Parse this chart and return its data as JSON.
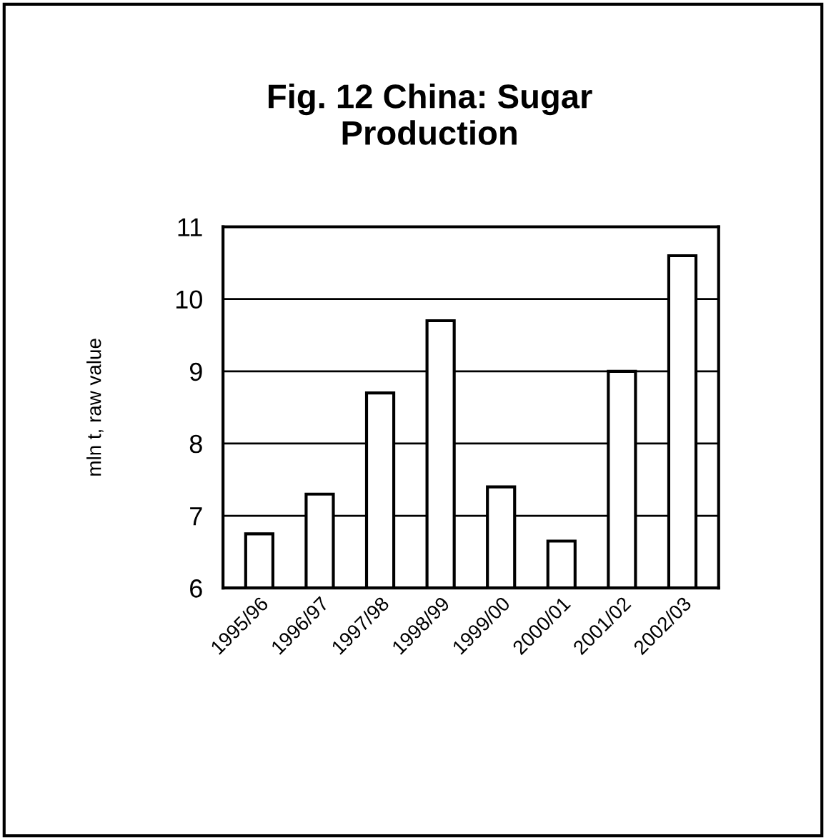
{
  "chart_data": {
    "type": "bar",
    "title": "Fig. 12 China: Sugar\nProduction",
    "ylabel": "mln t, raw value",
    "categories": [
      "1995/96",
      "1996/97",
      "1997/98",
      "1998/99",
      "1999/00",
      "2000/01",
      "2001/02",
      "2002/03"
    ],
    "values": [
      6.75,
      7.3,
      8.7,
      9.7,
      7.4,
      6.65,
      9.0,
      10.6
    ],
    "color": "#ffffff",
    "ylim": [
      6,
      11
    ],
    "yticks": [
      6,
      7,
      8,
      9,
      10,
      11
    ],
    "grid": "y"
  }
}
